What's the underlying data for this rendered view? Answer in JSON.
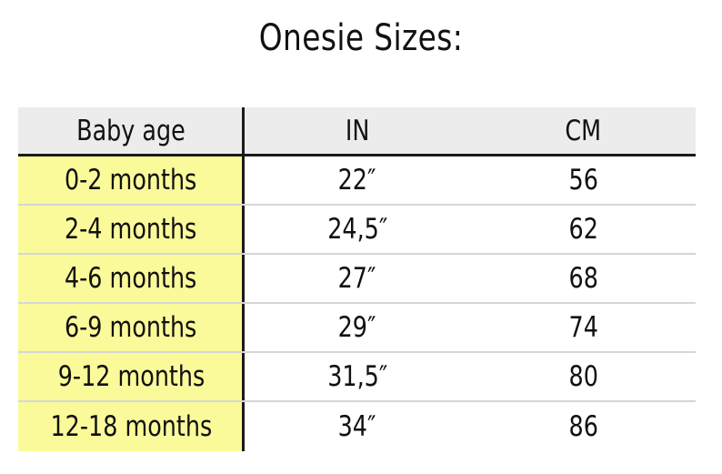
{
  "title": "Onesie Sizes:",
  "table": {
    "headers": [
      "Baby age",
      "IN",
      "CM"
    ],
    "rows": [
      [
        "0-2 months",
        "22″",
        "56"
      ],
      [
        "2-4 months",
        "24,5″",
        "62"
      ],
      [
        "4-6 months",
        "27″",
        "68"
      ],
      [
        "6-9 months",
        "29″",
        "74"
      ],
      [
        "9-12 months",
        "31,5″",
        "80"
      ],
      [
        "12-18 months",
        "34″",
        "86"
      ]
    ]
  },
  "colors": {
    "age_highlight": "#fafa9a",
    "header_background": "#ececec"
  }
}
